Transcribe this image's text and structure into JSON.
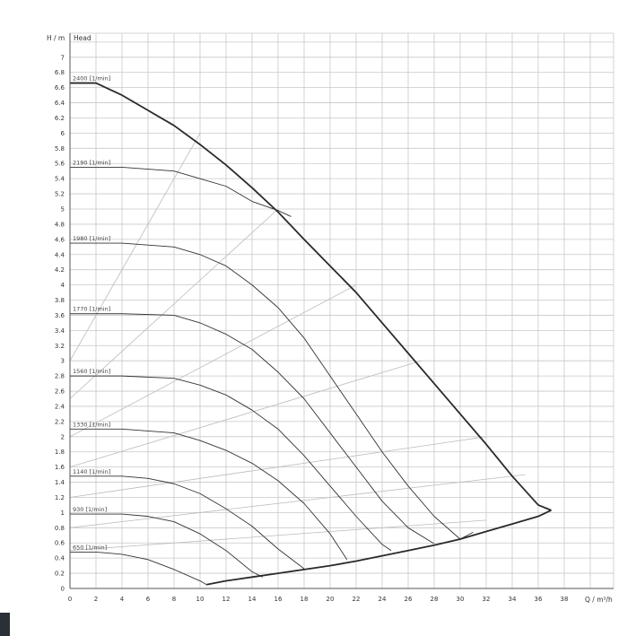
{
  "chart_data": {
    "type": "line",
    "y_axis_label": "H / m",
    "y_axis_title": "Head",
    "x_axis_label": "Q / m³/h",
    "xlim": [
      0,
      40
    ],
    "ylim": [
      0,
      7.3
    ],
    "x_ticks": [
      0,
      2,
      4,
      6,
      8,
      10,
      12,
      14,
      16,
      18,
      20,
      22,
      24,
      26,
      28,
      30,
      32,
      34,
      36,
      38
    ],
    "y_ticks": [
      0,
      0.2,
      0.4,
      0.6,
      0.8,
      1,
      1.2,
      1.4,
      1.6,
      1.8,
      2,
      2.2,
      2.4,
      2.6,
      2.8,
      3,
      3.2,
      3.4,
      3.6,
      3.8,
      4,
      4.2,
      4.4,
      4.6,
      4.8,
      5,
      5.2,
      5.4,
      5.6,
      5.8,
      6,
      6.2,
      6.4,
      6.6,
      6.8,
      7
    ],
    "grid": true,
    "colors": {
      "curve": "#333333",
      "envelope": "#2a2a2a",
      "efficiency": "#bbbbbb",
      "grid": "#c8c8c8"
    },
    "series": [
      {
        "name": "2400 [1/min]",
        "x": [
          0,
          2,
          4,
          6,
          8,
          10,
          12,
          14,
          16,
          18,
          20,
          22,
          24,
          26,
          28,
          30,
          32,
          34,
          36,
          37
        ],
        "y": [
          6.66,
          6.66,
          6.5,
          6.3,
          6.1,
          5.85,
          5.58,
          5.28,
          4.96,
          4.6,
          4.25,
          3.9,
          3.5,
          3.1,
          2.7,
          2.3,
          1.9,
          1.48,
          1.1,
          1.03
        ]
      },
      {
        "name": "2190 [1/min]",
        "x": [
          0,
          4,
          8,
          10,
          12,
          14,
          16,
          17
        ],
        "y": [
          5.55,
          5.55,
          5.5,
          5.4,
          5.3,
          5.1,
          4.98,
          4.9
        ]
      },
      {
        "name": "1980 [1/min]",
        "x": [
          0,
          4,
          8,
          10,
          12,
          14,
          16,
          18,
          20,
          22,
          24,
          26,
          28,
          30,
          31
        ],
        "y": [
          4.55,
          4.55,
          4.5,
          4.4,
          4.25,
          4.0,
          3.7,
          3.3,
          2.8,
          2.3,
          1.8,
          1.35,
          0.95,
          0.65,
          0.74
        ]
      },
      {
        "name": "1770 [1/min]",
        "x": [
          0,
          4,
          8,
          10,
          12,
          14,
          16,
          18,
          20,
          22,
          24,
          26,
          28
        ],
        "y": [
          3.62,
          3.62,
          3.6,
          3.5,
          3.35,
          3.15,
          2.85,
          2.5,
          2.05,
          1.6,
          1.15,
          0.8,
          0.59
        ]
      },
      {
        "name": "1560 [1/min]",
        "x": [
          0,
          4,
          8,
          10,
          12,
          14,
          16,
          18,
          20,
          22,
          24,
          24.7
        ],
        "y": [
          2.8,
          2.8,
          2.77,
          2.68,
          2.55,
          2.35,
          2.1,
          1.75,
          1.35,
          0.95,
          0.58,
          0.5
        ]
      },
      {
        "name": "1330 [1/min]",
        "x": [
          0,
          4,
          8,
          10,
          12,
          14,
          16,
          18,
          20,
          21.3
        ],
        "y": [
          2.1,
          2.1,
          2.05,
          1.95,
          1.82,
          1.65,
          1.42,
          1.12,
          0.72,
          0.38
        ]
      },
      {
        "name": "1140 [1/min]",
        "x": [
          0,
          4,
          6,
          8,
          10,
          12,
          14,
          16,
          18
        ],
        "y": [
          1.48,
          1.48,
          1.45,
          1.38,
          1.25,
          1.05,
          0.82,
          0.52,
          0.26
        ]
      },
      {
        "name": "930 [1/min]",
        "x": [
          0,
          4,
          6,
          8,
          10,
          12,
          14,
          14.8
        ],
        "y": [
          0.98,
          0.98,
          0.95,
          0.88,
          0.72,
          0.5,
          0.22,
          0.15
        ]
      },
      {
        "name": "650 [1/min]",
        "x": [
          0,
          2,
          4,
          6,
          8,
          10,
          10.5
        ],
        "y": [
          0.48,
          0.48,
          0.45,
          0.38,
          0.25,
          0.1,
          0.05
        ]
      },
      {
        "name": "",
        "x": [
          10.5,
          12,
          14,
          16,
          18,
          20,
          22,
          24,
          26,
          28,
          30,
          32,
          34,
          36,
          37
        ],
        "y": [
          0.05,
          0.1,
          0.15,
          0.2,
          0.25,
          0.3,
          0.36,
          0.43,
          0.5,
          0.57,
          0.65,
          0.75,
          0.85,
          0.95,
          1.03
        ]
      }
    ],
    "efficiency_lines": [
      {
        "x": [
          0,
          10
        ],
        "y": [
          3.0,
          6.0
        ]
      },
      {
        "x": [
          0,
          16
        ],
        "y": [
          2.5,
          5.0
        ]
      },
      {
        "x": [
          0,
          22
        ],
        "y": [
          2.0,
          4.0
        ]
      },
      {
        "x": [
          0,
          27
        ],
        "y": [
          1.6,
          3.0
        ]
      },
      {
        "x": [
          0,
          32
        ],
        "y": [
          1.2,
          2.0
        ]
      },
      {
        "x": [
          0,
          35
        ],
        "y": [
          0.8,
          1.5
        ]
      },
      {
        "x": [
          0,
          32
        ],
        "y": [
          0.5,
          0.9
        ]
      }
    ]
  }
}
